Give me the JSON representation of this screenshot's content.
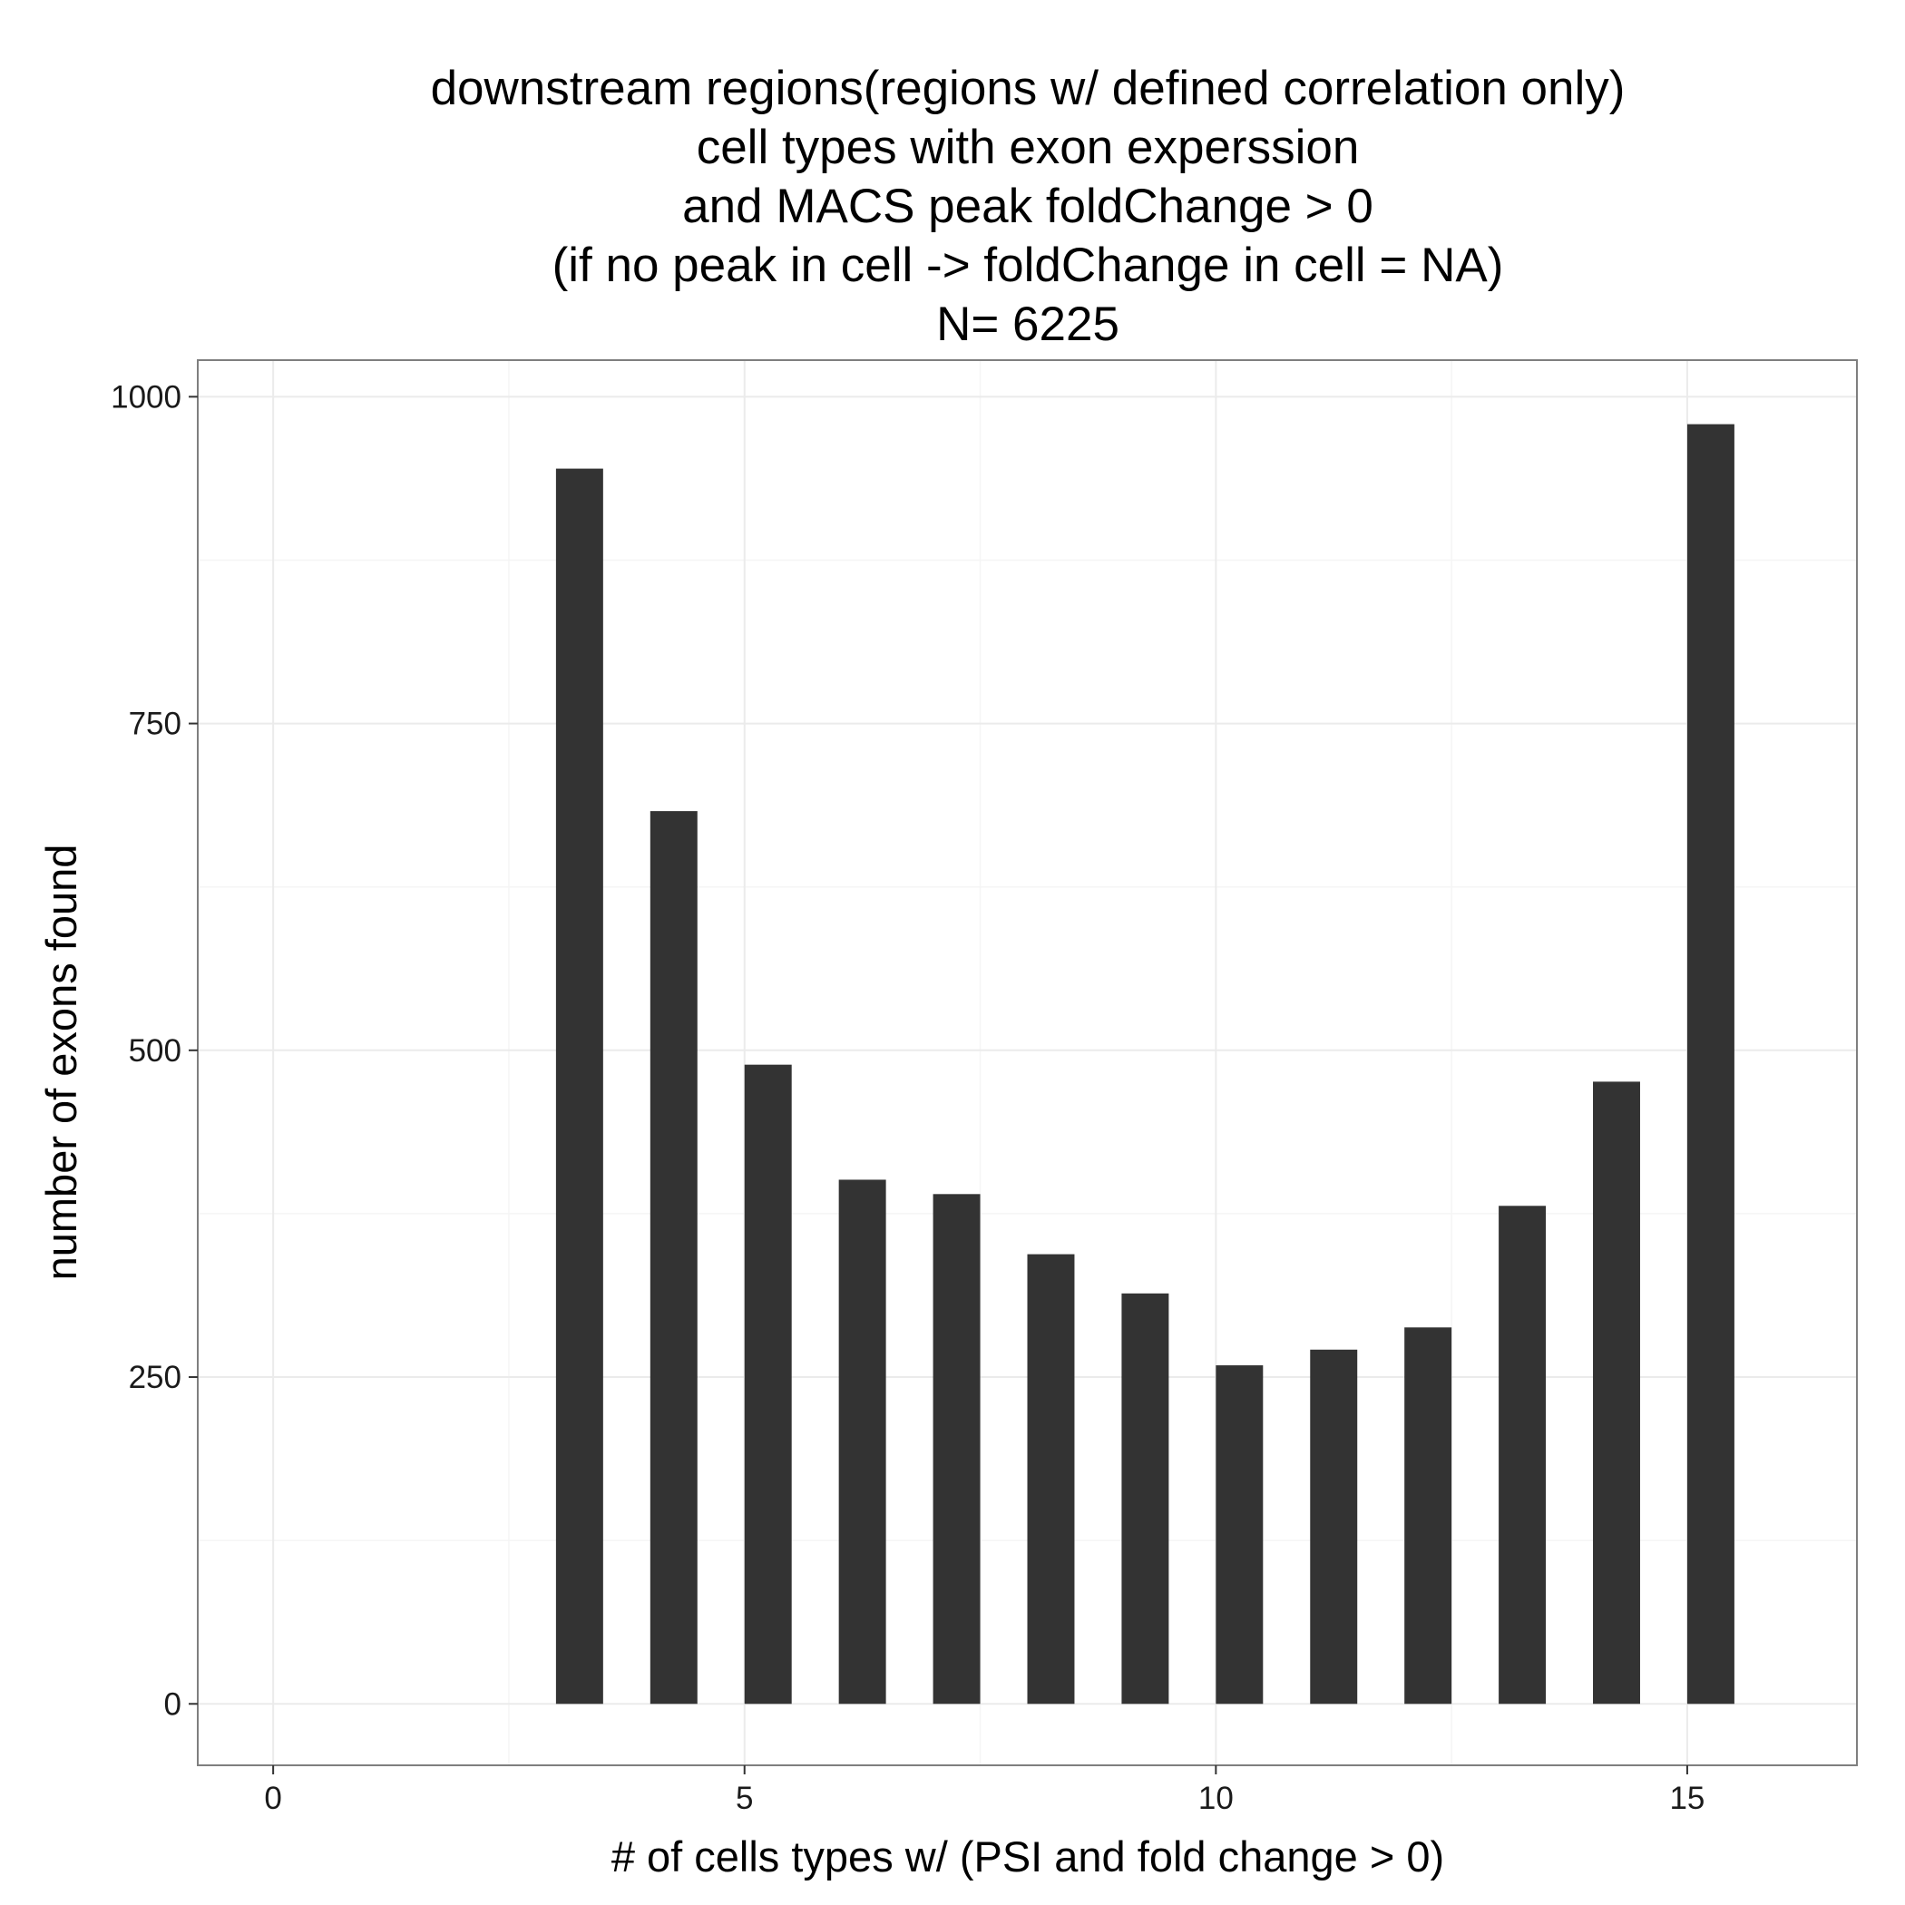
{
  "chart_data": {
    "type": "bar",
    "title_lines": [
      "downstream regions(regions w/ defined correlation only)",
      "cell types with exon experssion",
      "and MACS peak foldChange > 0",
      "(if no peak in cell  -> foldChange in cell = NA)",
      "N= 6225"
    ],
    "xlabel": "# of cells types w/ (PSI and fold change > 0)",
    "ylabel": "number of exons found",
    "x": [
      3,
      4,
      5,
      6,
      7,
      8,
      9,
      10,
      11,
      12,
      13,
      14,
      15
    ],
    "values": [
      945,
      683,
      489,
      401,
      390,
      344,
      314,
      259,
      271,
      288,
      381,
      476,
      979
    ],
    "xlim": [
      -0.8,
      16.8
    ],
    "ylim": [
      -47,
      1028
    ],
    "xticks": [
      0,
      5,
      10,
      15
    ],
    "yticks": [
      0,
      250,
      500,
      750,
      1000
    ],
    "xtick_labels": [
      "0",
      "5",
      "10",
      "15"
    ],
    "ytick_labels": [
      "0",
      "250",
      "500",
      "750",
      "1000"
    ],
    "bar_color": "#333333",
    "grid": true,
    "background": "#ffffff",
    "grid_color": "#ebebeb",
    "panel_border_color": "#7f7f7f"
  }
}
